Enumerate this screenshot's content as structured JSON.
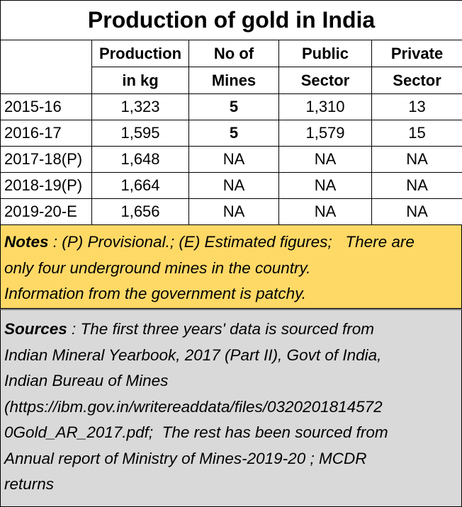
{
  "title": "Production of gold in India",
  "headers": {
    "year": "",
    "production": [
      "Production",
      "in kg"
    ],
    "mines": [
      "No of",
      "Mines"
    ],
    "public": [
      "Public",
      "Sector"
    ],
    "private": [
      "Private",
      "Sector"
    ]
  },
  "rows": [
    {
      "year": "2015-16",
      "production": "1,323",
      "mines": "5",
      "public": "1,310",
      "private": "13"
    },
    {
      "year": "2016-17",
      "production": "1,595",
      "mines": "5",
      "public": "1,579",
      "private": "15"
    },
    {
      "year": "2017-18(P)",
      "production": "1,648",
      "mines": "NA",
      "public": "NA",
      "private": "NA"
    },
    {
      "year": "2018-19(P)",
      "production": "1,664",
      "mines": "NA",
      "public": "NA",
      "private": "NA"
    },
    {
      "year": "2019-20-E",
      "production": "1,656",
      "mines": "NA",
      "public": "NA",
      "private": "NA"
    }
  ],
  "notes": {
    "label": "Notes",
    "lines": [
      " : (P) Provisional.; (E) Estimated figures;   There are",
      "only four underground mines in the country.",
      "Information from the government is patchy."
    ]
  },
  "sources": {
    "label": "Sources",
    "lines": [
      " : The first three years' data is sourced from",
      "Indian Mineral Yearbook, 2017 (Part II), Govt of India,",
      "Indian Bureau of Mines",
      "(https://ibm.gov.in/writereaddata/files/0320201814572",
      "0Gold_AR_2017.pdf;  The rest has been sourced from",
      "Annual report of Ministry of Mines-2019-20 ; MCDR",
      "returns"
    ]
  },
  "colors": {
    "notes_bg": "#ffd966",
    "sources_bg": "#d9d9d9"
  }
}
